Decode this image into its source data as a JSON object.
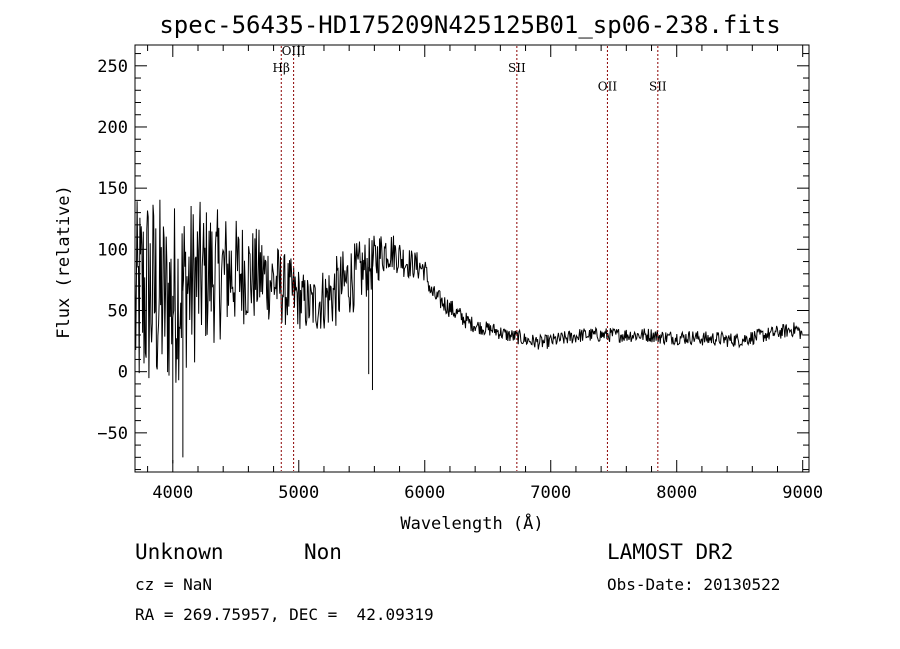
{
  "header": {
    "title": "spec-56435-HD175209N425125B01_sp06-238.fits"
  },
  "footer": {
    "class_label": "Unknown",
    "subclass_label": "Non",
    "survey": "LAMOST DR2",
    "cz": "cz = NaN",
    "obs_date": "Obs-Date: 20130522",
    "coords": "RA = 269.75957, DEC =  42.09319"
  },
  "chart_data": {
    "type": "line",
    "title": "spec-56435-HD175209N425125B01_sp06-238.fits",
    "xlabel": "Wavelength (Å)",
    "ylabel": "Flux (relative)",
    "xlim": [
      3700,
      9050
    ],
    "ylim": [
      -82,
      267
    ],
    "x_ticks": [
      4000,
      5000,
      6000,
      7000,
      8000,
      9000
    ],
    "x_tick_labels": [
      "4000",
      "5000",
      "6000",
      "7000",
      "8000",
      "9000"
    ],
    "y_ticks": [
      -50,
      0,
      50,
      100,
      150,
      200,
      250
    ],
    "y_tick_labels": [
      "−50",
      "0",
      "50",
      "100",
      "150",
      "200",
      "250"
    ],
    "grid": false,
    "line_color": "#000000",
    "marker_color": "#8b0000",
    "lines": [
      {
        "label": "Hβ",
        "wavelength": 4861,
        "label_flux": 245
      },
      {
        "label": "OIII",
        "wavelength": 4959,
        "label_flux": 259
      },
      {
        "label": "SII",
        "wavelength": 6731,
        "label_flux": 245
      },
      {
        "label": "OII",
        "wavelength": 7450,
        "label_flux": 230
      },
      {
        "label": "SII",
        "wavelength": 7850,
        "label_flux": 230
      }
    ],
    "series": [
      {
        "x": [
          3700,
          3750,
          3800,
          3850,
          3900,
          3950,
          4000,
          4050,
          4100,
          4150,
          4200,
          4250,
          4300,
          4350,
          4400,
          4450,
          4500,
          4550,
          4600,
          4650,
          4700,
          4750,
          4800,
          4850,
          4900,
          4950,
          5000,
          5050,
          5100,
          5150,
          5200,
          5250,
          5300,
          5350,
          5400,
          5450,
          5500,
          5550,
          5600,
          5650,
          5700,
          5750,
          5800,
          5850,
          5900,
          5950,
          6000,
          6050,
          6100,
          6150,
          6200,
          6250,
          6300,
          6350,
          6400,
          6450,
          6500,
          6550,
          6600,
          6650,
          6700,
          6750,
          6800,
          6850,
          6900,
          6950,
          7000,
          7050,
          7100,
          7150,
          7200,
          7250,
          7300,
          7350,
          7400,
          7450,
          7500,
          7550,
          7600,
          7650,
          7700,
          7750,
          7800,
          7850,
          7900,
          7950,
          8000,
          8050,
          8100,
          8150,
          8200,
          8250,
          8300,
          8350,
          8400,
          8450,
          8500,
          8550,
          8600,
          8650,
          8700,
          8750,
          8800,
          8850,
          8900,
          8950,
          9000
        ],
        "y": [
          50,
          60,
          65,
          62,
          60,
          58,
          62,
          68,
          70,
          72,
          75,
          78,
          80,
          78,
          80,
          82,
          80,
          82,
          80,
          78,
          80,
          76,
          74,
          70,
          66,
          64,
          60,
          56,
          54,
          56,
          60,
          62,
          65,
          70,
          75,
          78,
          82,
          85,
          90,
          96,
          100,
          98,
          94,
          90,
          88,
          86,
          84,
          65,
          60,
          56,
          52,
          48,
          44,
          40,
          38,
          36,
          35,
          34,
          32,
          30,
          29,
          28,
          26,
          25,
          24,
          24,
          25,
          26,
          27,
          28,
          29,
          30,
          30,
          30,
          30,
          30,
          30,
          30,
          30,
          30,
          30,
          30,
          30,
          29,
          28,
          28,
          28,
          28,
          28,
          28,
          27,
          27,
          27,
          27,
          26,
          26,
          26,
          27,
          28,
          29,
          30,
          31,
          32,
          33,
          34,
          35,
          30
        ],
        "noise": [
          85,
          90,
          90,
          88,
          85,
          75,
          80,
          75,
          70,
          70,
          65,
          60,
          58,
          55,
          52,
          48,
          46,
          44,
          42,
          40,
          38,
          35,
          35,
          32,
          30,
          28,
          26,
          24,
          24,
          25,
          27,
          28,
          30,
          30,
          30,
          28,
          26,
          24,
          22,
          20,
          18,
          16,
          15,
          14,
          12,
          12,
          10,
          8,
          8,
          8,
          8,
          8,
          7,
          7,
          6,
          6,
          6,
          6,
          6,
          6,
          6,
          6,
          6,
          6,
          6,
          6,
          6,
          6,
          6,
          6,
          6,
          6,
          6,
          6,
          6,
          6,
          6,
          6,
          6,
          6,
          6,
          6,
          6,
          6,
          6,
          6,
          6,
          6,
          6,
          6,
          6,
          6,
          6,
          6,
          6,
          6,
          6,
          6,
          6,
          6,
          6,
          6,
          6,
          6,
          6,
          6,
          6
        ]
      }
    ]
  }
}
